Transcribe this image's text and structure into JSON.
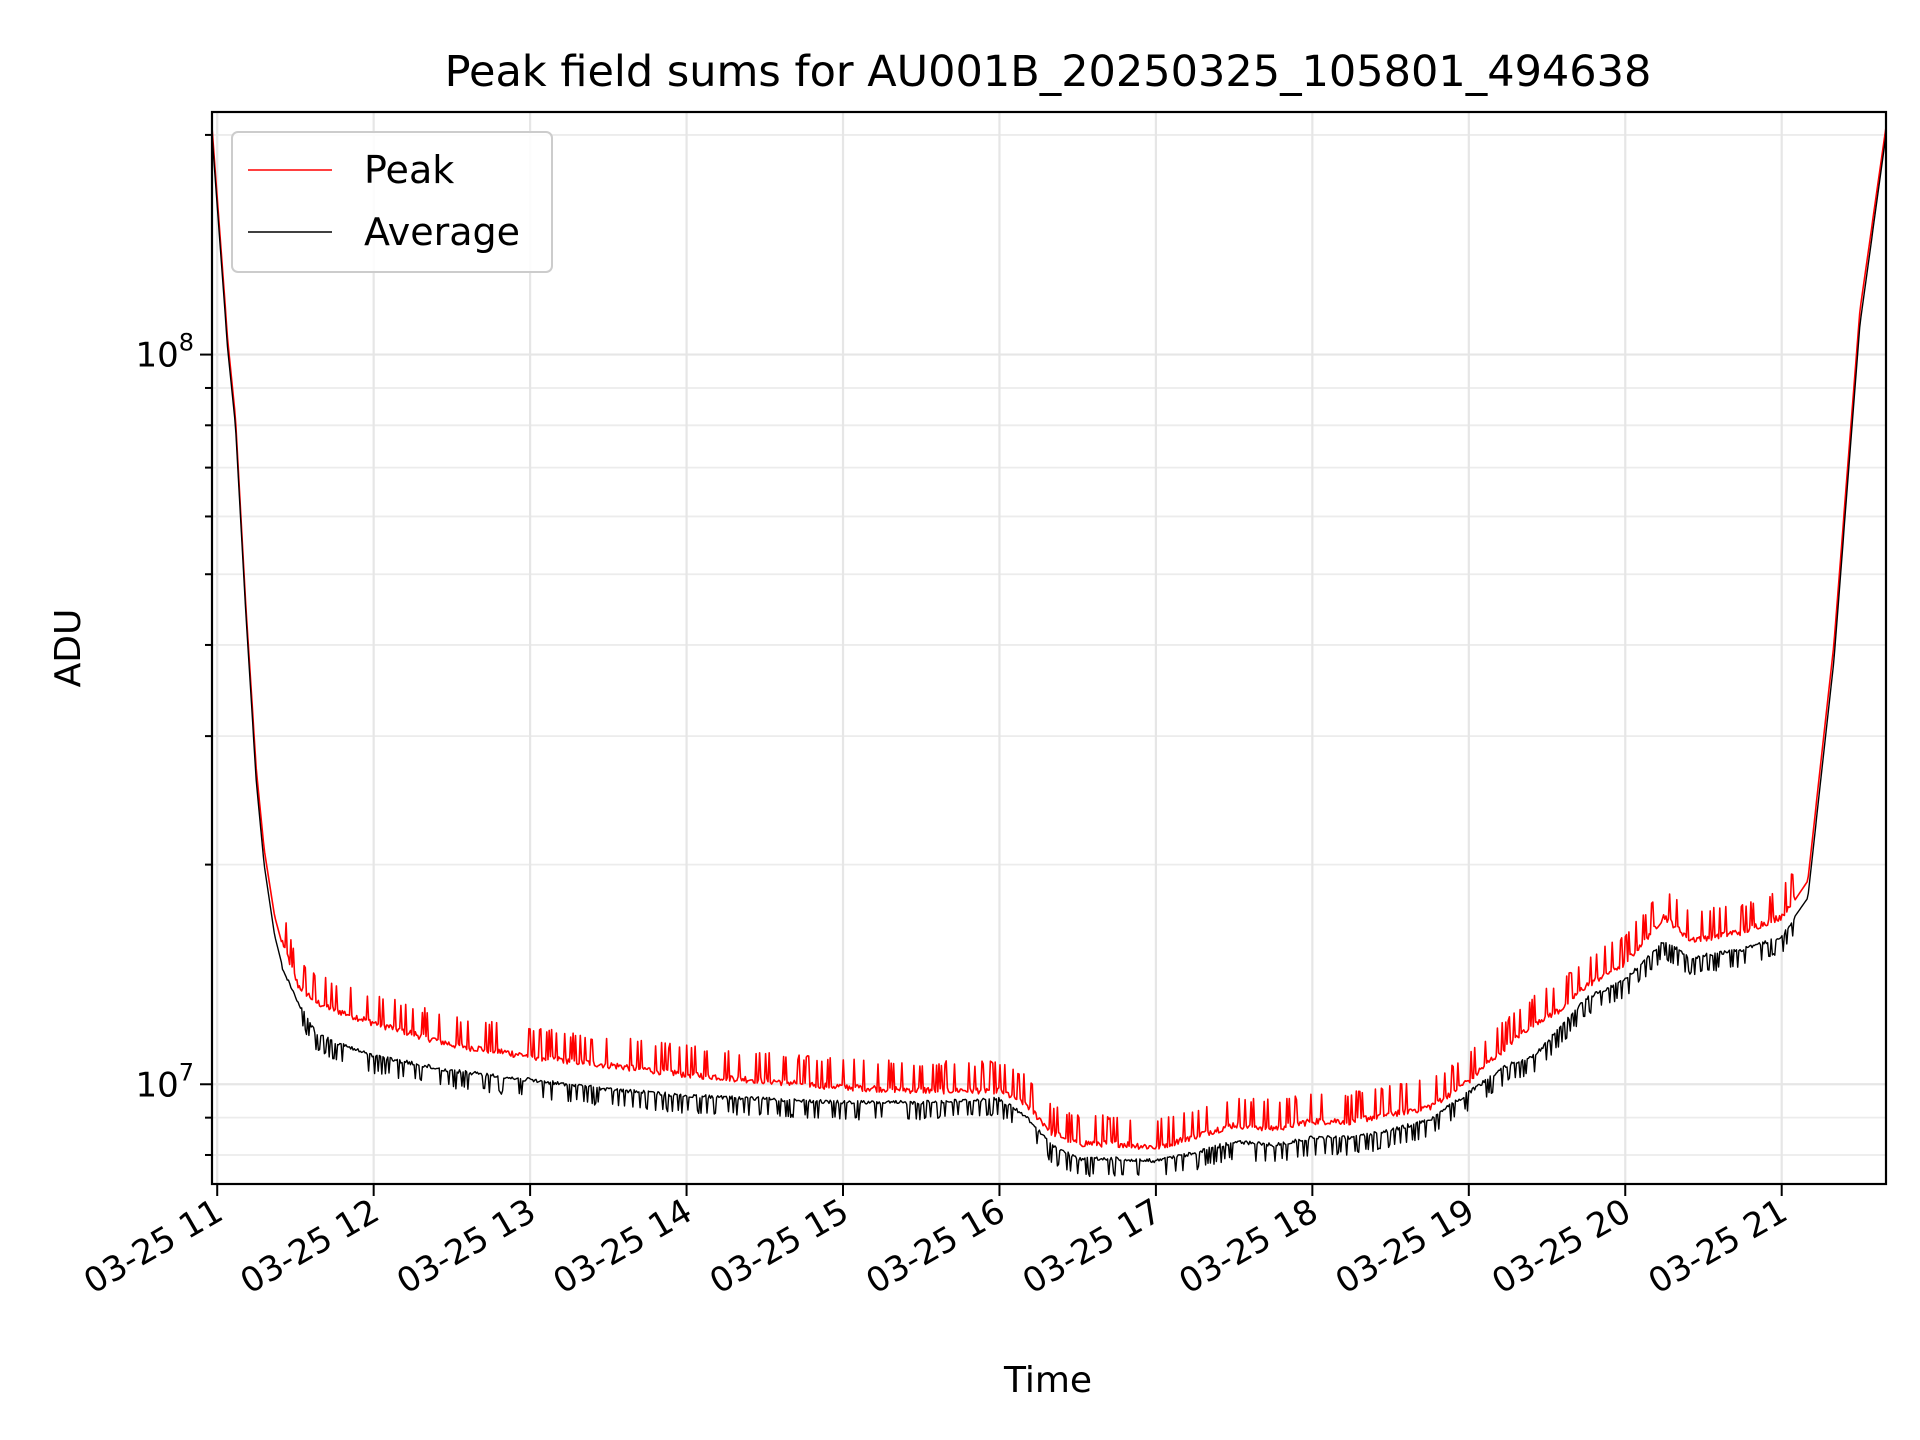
{
  "chart_data": {
    "type": "line",
    "title": "Peak field sums for AU001B_20250325_105801_494638",
    "xlabel": "Time",
    "ylabel": "ADU",
    "y_scale": "log",
    "grid": true,
    "legend_position": "top-left",
    "xlim": [
      "2025-03-25 10:58",
      "2025-03-25 21:40"
    ],
    "ylim": [
      7300000,
      215000000
    ],
    "x_ticks": [
      "2025-03-25 11:00",
      "2025-03-25 12:00",
      "2025-03-25 13:00",
      "2025-03-25 14:00",
      "2025-03-25 15:00",
      "2025-03-25 16:00",
      "2025-03-25 17:00",
      "2025-03-25 18:00",
      "2025-03-25 19:00",
      "2025-03-25 20:00",
      "2025-03-25 21:00"
    ],
    "x_tick_labels": [
      "03-25 11",
      "03-25 12",
      "03-25 13",
      "03-25 14",
      "03-25 15",
      "03-25 16",
      "03-25 17",
      "03-25 18",
      "03-25 19",
      "03-25 20",
      "03-25 21"
    ],
    "y_ticks": [
      10000000,
      100000000
    ],
    "y_tick_labels": [
      {
        "base": "10",
        "exp": "7"
      },
      {
        "base": "10",
        "exp": "8"
      }
    ],
    "series": [
      {
        "name": "Peak",
        "color": "#ff0000",
        "x": [
          "2025-03-25 10:58",
          "2025-03-25 11:04",
          "2025-03-25 11:07",
          "2025-03-25 11:11",
          "2025-03-25 11:15",
          "2025-03-25 11:18",
          "2025-03-25 11:22",
          "2025-03-25 11:25",
          "2025-03-25 11:31",
          "2025-03-25 11:38",
          "2025-03-25 11:45",
          "2025-03-25 12:00",
          "2025-03-25 12:30",
          "2025-03-25 13:00",
          "2025-03-25 13:30",
          "2025-03-25 14:00",
          "2025-03-25 14:30",
          "2025-03-25 15:00",
          "2025-03-25 15:30",
          "2025-03-25 16:00",
          "2025-03-25 16:10",
          "2025-03-25 16:20",
          "2025-03-25 16:30",
          "2025-03-25 16:45",
          "2025-03-25 17:00",
          "2025-03-25 17:15",
          "2025-03-25 17:30",
          "2025-03-25 17:45",
          "2025-03-25 18:00",
          "2025-03-25 18:15",
          "2025-03-25 18:30",
          "2025-03-25 18:45",
          "2025-03-25 19:00",
          "2025-03-25 19:15",
          "2025-03-25 19:25",
          "2025-03-25 19:35",
          "2025-03-25 19:45",
          "2025-03-25 20:00",
          "2025-03-25 20:15",
          "2025-03-25 20:25",
          "2025-03-25 20:45",
          "2025-03-25 21:00",
          "2025-03-25 21:10",
          "2025-03-25 21:20",
          "2025-03-25 21:30",
          "2025-03-25 21:40"
        ],
        "y": [
          205000000,
          105000000,
          82000000,
          45000000,
          27000000,
          21000000,
          17000000,
          15500000,
          13500000,
          12800000,
          12500000,
          12000000,
          11200000,
          10800000,
          10500000,
          10200000,
          10000000,
          9800000,
          9700000,
          9700000,
          9300000,
          8500000,
          8200000,
          8200000,
          8100000,
          8400000,
          8700000,
          8600000,
          8800000,
          8800000,
          9000000,
          9200000,
          10000000,
          11200000,
          12000000,
          12500000,
          13500000,
          14500000,
          16800000,
          15600000,
          16000000,
          16800000,
          19000000,
          40000000,
          115000000,
          205000000
        ]
      },
      {
        "name": "Average",
        "color": "#000000",
        "x": [
          "2025-03-25 10:58",
          "2025-03-25 11:04",
          "2025-03-25 11:07",
          "2025-03-25 11:11",
          "2025-03-25 11:15",
          "2025-03-25 11:18",
          "2025-03-25 11:22",
          "2025-03-25 11:25",
          "2025-03-25 11:31",
          "2025-03-25 11:38",
          "2025-03-25 11:45",
          "2025-03-25 12:00",
          "2025-03-25 12:30",
          "2025-03-25 13:00",
          "2025-03-25 13:30",
          "2025-03-25 14:00",
          "2025-03-25 14:30",
          "2025-03-25 15:00",
          "2025-03-25 15:30",
          "2025-03-25 16:00",
          "2025-03-25 16:10",
          "2025-03-25 16:20",
          "2025-03-25 16:30",
          "2025-03-25 16:45",
          "2025-03-25 17:00",
          "2025-03-25 17:15",
          "2025-03-25 17:30",
          "2025-03-25 17:45",
          "2025-03-25 18:00",
          "2025-03-25 18:15",
          "2025-03-25 18:30",
          "2025-03-25 18:45",
          "2025-03-25 19:00",
          "2025-03-25 19:15",
          "2025-03-25 19:25",
          "2025-03-25 19:35",
          "2025-03-25 19:45",
          "2025-03-25 20:00",
          "2025-03-25 20:15",
          "2025-03-25 20:25",
          "2025-03-25 20:45",
          "2025-03-25 21:00",
          "2025-03-25 21:10",
          "2025-03-25 21:20",
          "2025-03-25 21:30",
          "2025-03-25 21:40"
        ],
        "y": [
          200000000,
          102000000,
          80000000,
          44000000,
          26000000,
          20000000,
          16000000,
          14500000,
          13000000,
          11800000,
          11500000,
          11000000,
          10500000,
          10200000,
          9900000,
          9700000,
          9600000,
          9500000,
          9500000,
          9600000,
          9100000,
          8300000,
          7950000,
          7950000,
          7900000,
          8100000,
          8400000,
          8300000,
          8500000,
          8500000,
          8700000,
          9000000,
          9800000,
          10700000,
          11000000,
          12000000,
          13200000,
          14000000,
          15800000,
          15000000,
          15400000,
          16000000,
          18000000,
          38000000,
          110000000,
          200000000
        ]
      }
    ]
  }
}
